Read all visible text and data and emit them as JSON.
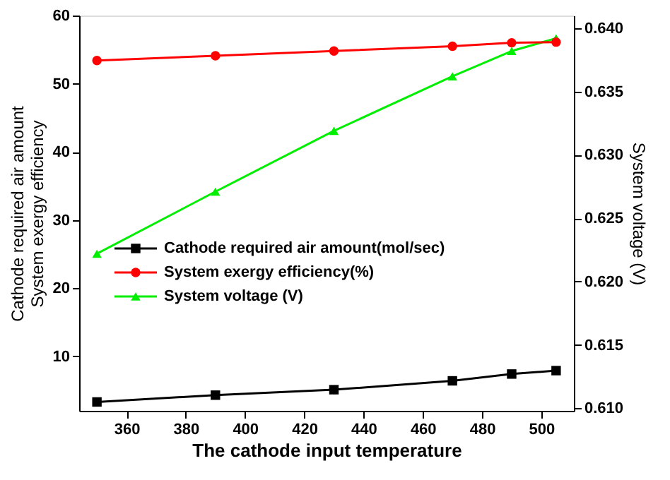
{
  "chart_data": {
    "type": "line",
    "xlabel": "The  cathode  input  temperature",
    "ylabel": "Cathode required air amount\nSystem exergy efficiency",
    "y2label": "System   voltage (V)",
    "x": [
      350,
      390,
      430,
      470,
      490,
      505
    ],
    "series": [
      {
        "name": "Cathode required air amount(mol/sec)",
        "color": "#000000",
        "marker": "square",
        "values": [
          3.3,
          4.3,
          5.1,
          6.4,
          7.4,
          7.9
        ]
      },
      {
        "name": "System exergy efficiency(%)",
        "color": "#ff0000",
        "marker": "circle",
        "values": [
          53.4,
          54.1,
          54.8,
          55.5,
          56.0,
          56.1
        ]
      },
      {
        "name": "System voltage (V)",
        "color": "#00ee00",
        "marker": "triangle",
        "axis": "y2",
        "values": [
          0.6222,
          0.6271,
          0.6319,
          0.6362,
          0.6382,
          0.6392
        ]
      }
    ],
    "xlim": [
      344,
      511
    ],
    "xticks": [
      360,
      380,
      400,
      420,
      440,
      460,
      480,
      500
    ],
    "ylim": [
      2,
      60
    ],
    "yticks": [
      10,
      20,
      30,
      40,
      50,
      60
    ],
    "y2lim": [
      0.6098,
      0.641
    ],
    "y2ticks": [
      {
        "value": 0.61,
        "label": "0.610"
      },
      {
        "value": 0.615,
        "label": "0.615"
      },
      {
        "value": 0.62,
        "label": "0.620"
      },
      {
        "value": 0.625,
        "label": "0.625"
      },
      {
        "value": 0.63,
        "label": "0.630"
      },
      {
        "value": 0.635,
        "label": "0.635"
      },
      {
        "value": 0.64,
        "label": "0.640"
      }
    ],
    "grid": false,
    "legend": "left",
    "line_style": "solid"
  }
}
